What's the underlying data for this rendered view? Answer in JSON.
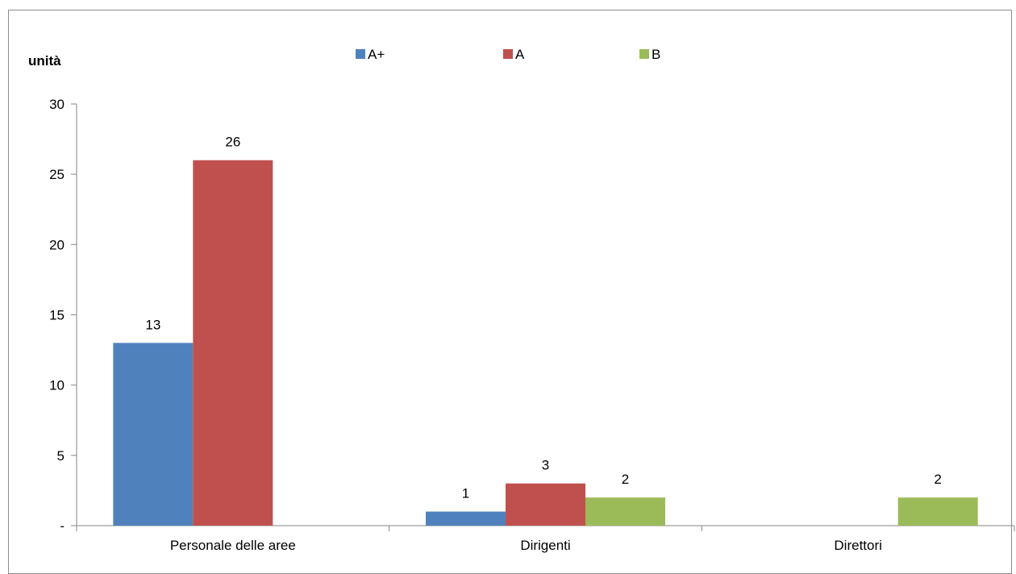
{
  "chart_data": {
    "type": "bar",
    "ylabel": "unità",
    "categories": [
      "Personale delle aree",
      "Dirigenti",
      "Direttori"
    ],
    "series": [
      {
        "name": "A+",
        "color": "#4f81bd",
        "values": [
          13,
          1,
          null
        ],
        "labels": [
          "13",
          "1",
          ""
        ]
      },
      {
        "name": "A",
        "color": "#c0504d",
        "values": [
          26,
          3,
          null
        ],
        "labels": [
          "26",
          "3",
          ""
        ]
      },
      {
        "name": "B",
        "color": "#9bbb59",
        "values": [
          null,
          2,
          2
        ],
        "labels": [
          "",
          "2",
          "2"
        ]
      }
    ],
    "ylim": [
      0,
      30
    ],
    "yticks": [
      {
        "value": 0,
        "label": "-"
      },
      {
        "value": 5,
        "label": "5"
      },
      {
        "value": 10,
        "label": "10"
      },
      {
        "value": 15,
        "label": "15"
      },
      {
        "value": 20,
        "label": "20"
      },
      {
        "value": 25,
        "label": "25"
      },
      {
        "value": 30,
        "label": "30"
      }
    ],
    "legend_position": "top",
    "grid": false
  }
}
